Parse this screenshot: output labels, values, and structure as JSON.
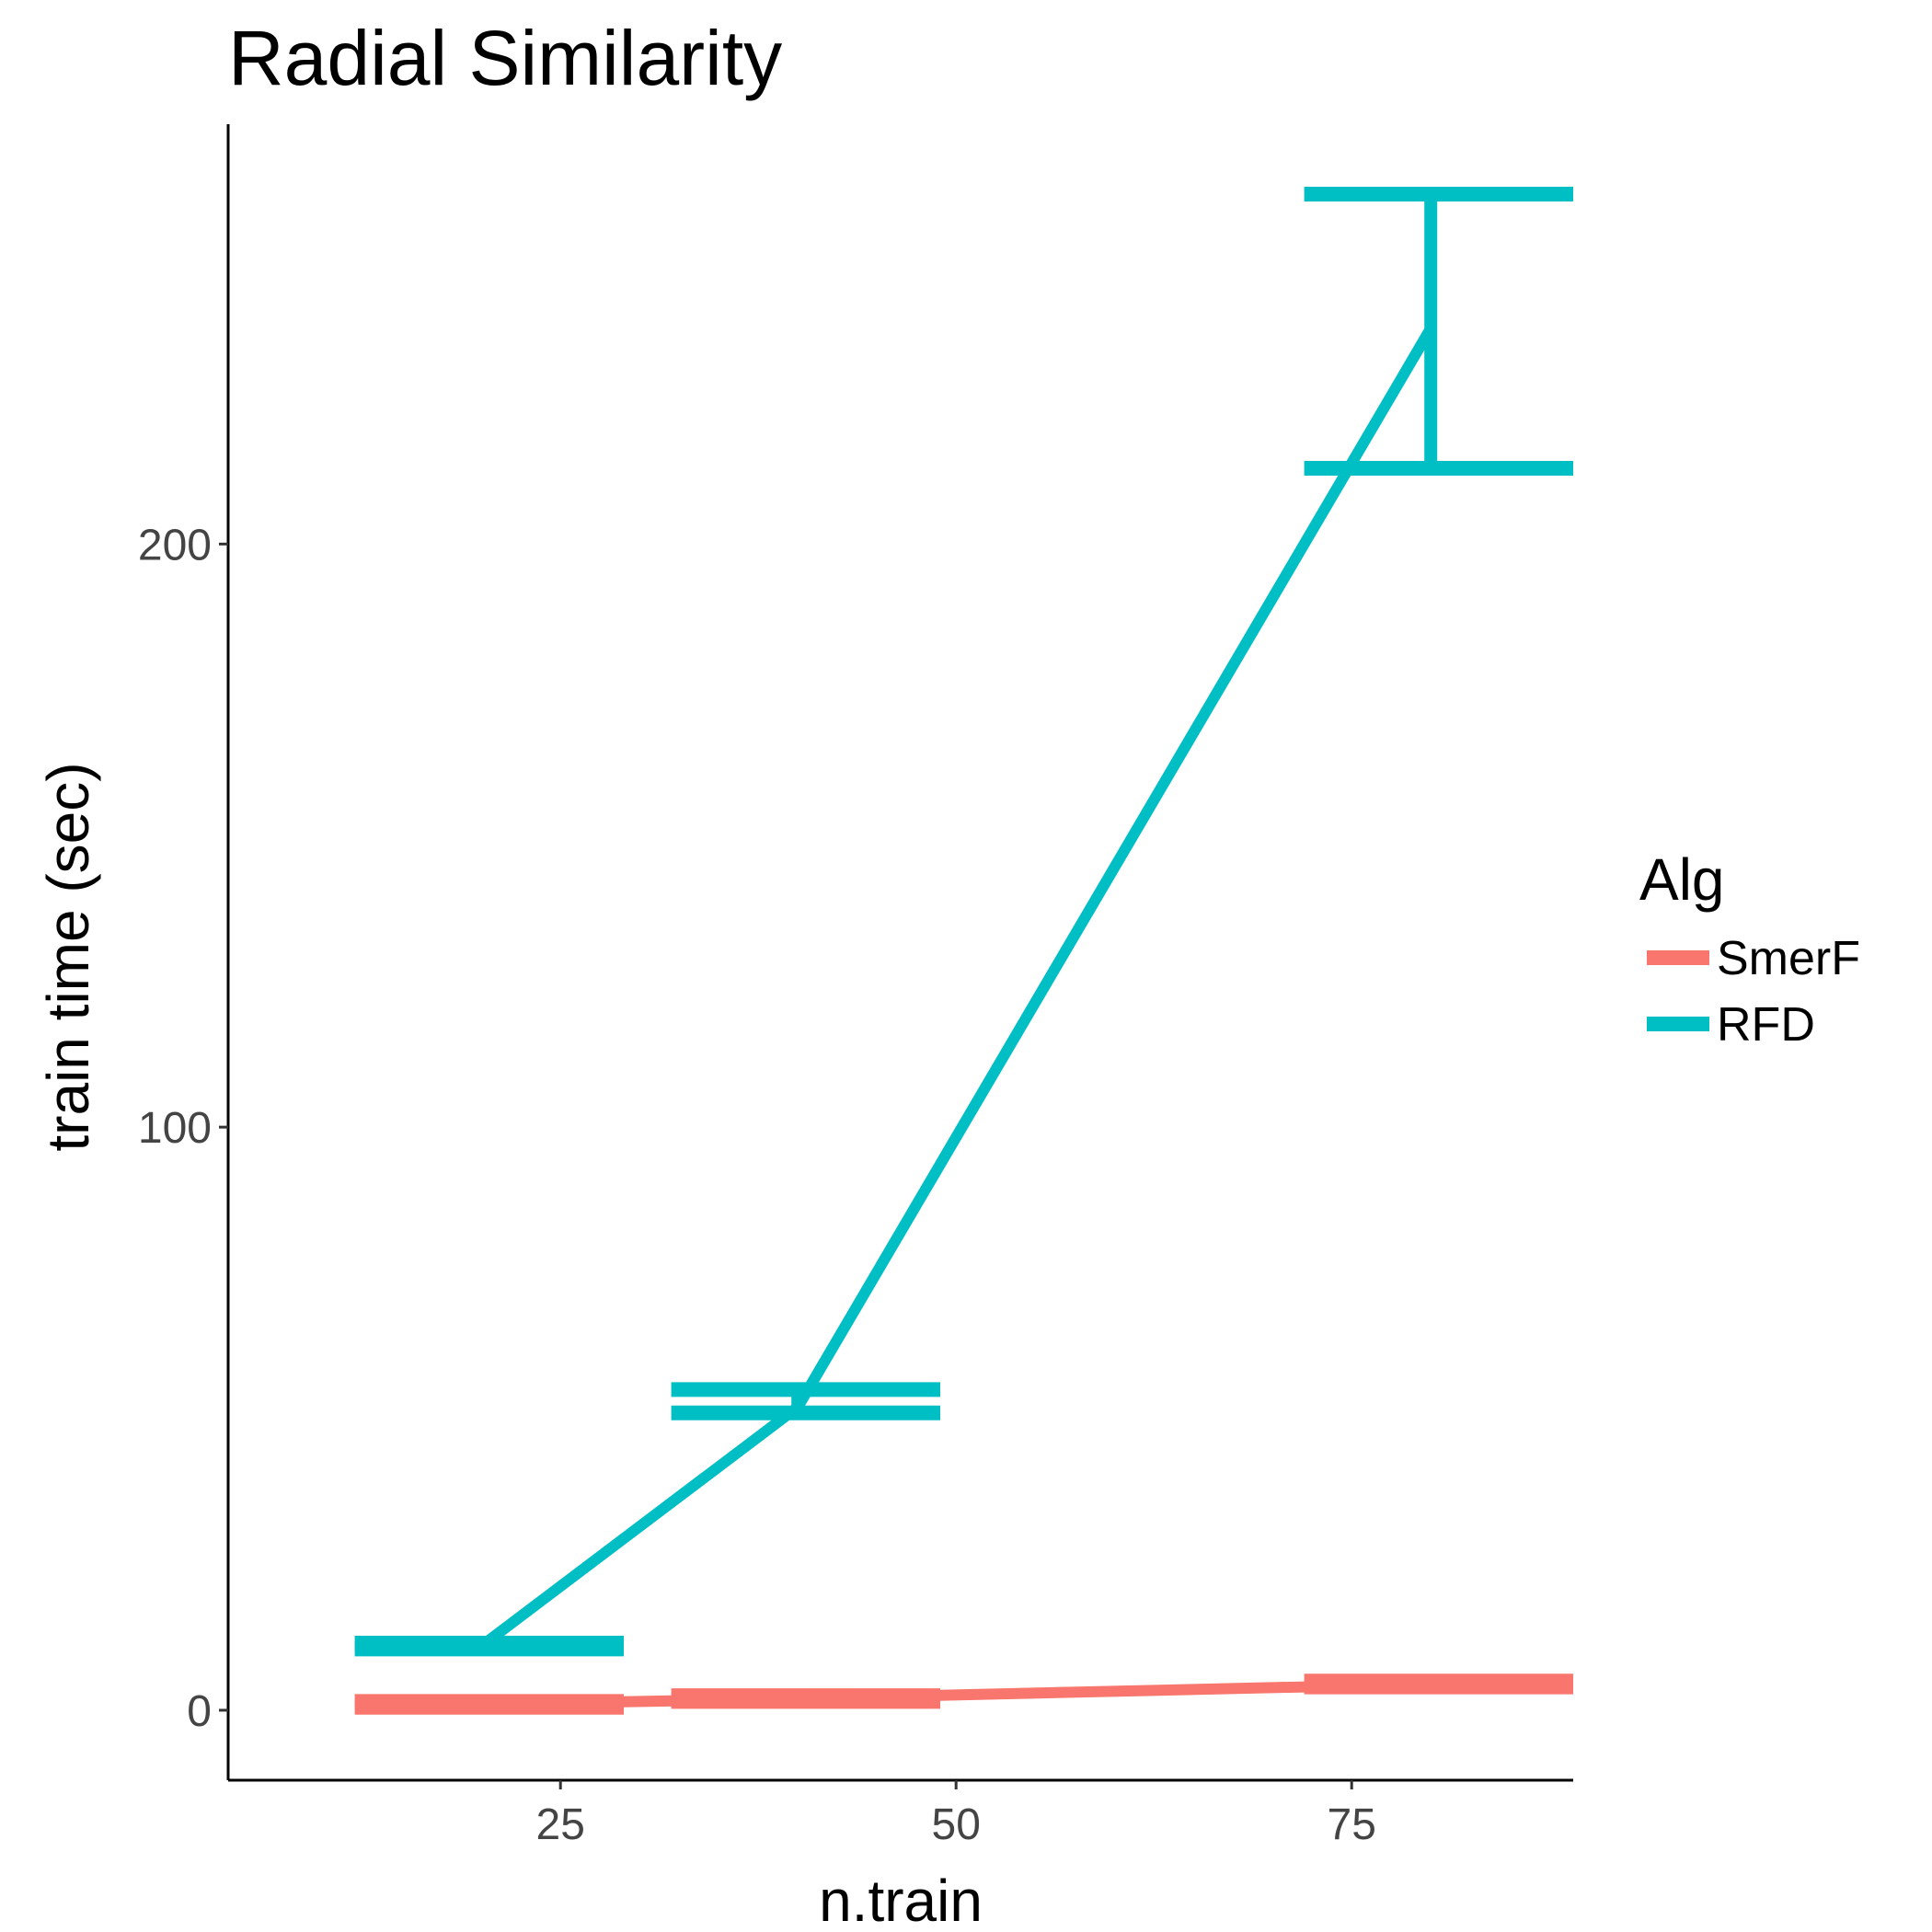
{
  "chart_data": {
    "type": "line",
    "title": "Radial Similarity",
    "xlabel": "n.train",
    "ylabel": "train time (sec)",
    "xlim": [
      4,
      89
    ],
    "ylim": [
      -12,
      272
    ],
    "xticks": [
      25,
      50,
      75
    ],
    "yticks": [
      0,
      100,
      200
    ],
    "grid": false,
    "legend": {
      "title": "Alg",
      "placement": "right"
    },
    "series": [
      {
        "name": "SmerF",
        "color": "#F8766D",
        "points": [
          {
            "x": 20,
            "y": 1.0,
            "ymin": 0.5,
            "ymax": 1.5,
            "xmin": 12,
            "xmax": 29
          },
          {
            "x": 40,
            "y": 2.0,
            "ymin": 1.5,
            "ymax": 2.5,
            "xmin": 32,
            "xmax": 49
          },
          {
            "x": 80,
            "y": 4.5,
            "ymin": 4.0,
            "ymax": 5.0,
            "xmin": 72,
            "xmax": 89
          }
        ]
      },
      {
        "name": "RFD",
        "color": "#00BFC4",
        "points": [
          {
            "x": 20,
            "y": 11,
            "ymin": 10.5,
            "ymax": 11.5,
            "xmin": 12,
            "xmax": 29
          },
          {
            "x": 40,
            "y": 52,
            "ymin": 51,
            "ymax": 55,
            "xmin": 32,
            "xmax": 49
          },
          {
            "x": 80,
            "y": 237,
            "ymin": 213,
            "ymax": 260,
            "xmin": 72,
            "xmax": 89
          }
        ]
      }
    ]
  }
}
